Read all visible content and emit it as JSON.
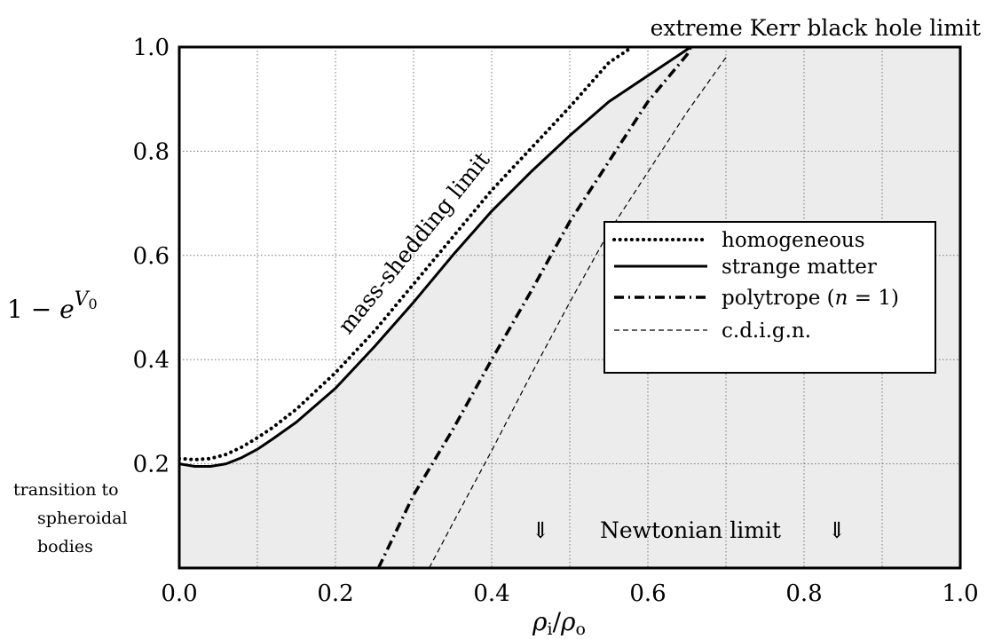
{
  "chart_data": {
    "type": "line",
    "xlabel": "ρi/ρo",
    "ylabel": "1 − e^V0",
    "xlim": [
      0,
      1
    ],
    "ylim": [
      0,
      1
    ],
    "x_ticks": [
      "0.0",
      "0.2",
      "0.4",
      "0.6",
      "0.8",
      "1.0"
    ],
    "y_ticks": [
      "0.2",
      "0.4",
      "0.6",
      "0.8",
      "1.0"
    ],
    "grid": true,
    "legend_position": "right",
    "shaded_region": "below mass-shedding limit",
    "series": [
      {
        "name": "homogeneous",
        "style": "dotted",
        "x": [
          0.0,
          0.02,
          0.04,
          0.06,
          0.08,
          0.1,
          0.12,
          0.15,
          0.2,
          0.25,
          0.3,
          0.35,
          0.4,
          0.45,
          0.5,
          0.55,
          0.58
        ],
        "y": [
          0.21,
          0.208,
          0.21,
          0.218,
          0.232,
          0.25,
          0.27,
          0.305,
          0.375,
          0.455,
          0.545,
          0.635,
          0.725,
          0.805,
          0.885,
          0.97,
          1.0
        ]
      },
      {
        "name": "strange matter",
        "style": "solid",
        "x": [
          0.0,
          0.02,
          0.04,
          0.06,
          0.08,
          0.1,
          0.12,
          0.15,
          0.2,
          0.25,
          0.3,
          0.35,
          0.4,
          0.45,
          0.5,
          0.55,
          0.6,
          0.65,
          0.655
        ],
        "y": [
          0.2,
          0.195,
          0.195,
          0.2,
          0.212,
          0.228,
          0.248,
          0.28,
          0.345,
          0.425,
          0.51,
          0.6,
          0.685,
          0.76,
          0.83,
          0.895,
          0.945,
          0.995,
          1.0
        ]
      },
      {
        "name": "polytrope (n = 1)",
        "style": "dashdot",
        "x": [
          0.255,
          0.3,
          0.35,
          0.4,
          0.45,
          0.5,
          0.55,
          0.6,
          0.65,
          0.655
        ],
        "y": [
          0.0,
          0.14,
          0.265,
          0.4,
          0.53,
          0.665,
          0.78,
          0.895,
          0.985,
          1.0
        ]
      },
      {
        "name": "c.d.i.g.n.",
        "style": "dashed",
        "x": [
          0.32,
          0.35,
          0.4,
          0.45,
          0.5,
          0.55,
          0.6,
          0.65,
          0.7
        ],
        "y": [
          0.0,
          0.085,
          0.225,
          0.37,
          0.51,
          0.645,
          0.76,
          0.875,
          0.98
        ]
      }
    ],
    "annotations": {
      "top": "extreme Kerr black hole limit",
      "curve": "mass-shedding limit",
      "bottom_left": [
        "transition to",
        "spheroidal",
        "bodies"
      ],
      "newtonian": "Newtonian limit",
      "arrow": "⇓"
    }
  }
}
